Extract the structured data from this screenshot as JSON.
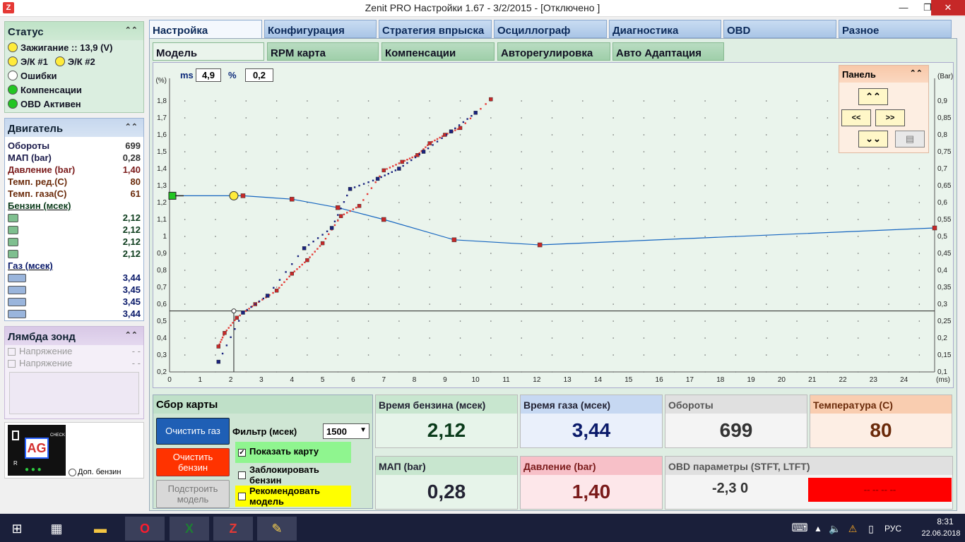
{
  "window": {
    "title": "Zenit PRO Настройки 1.67 - 3/2/2015  - [Отключено ]",
    "app_icon": "Z"
  },
  "status": {
    "title": "Статус",
    "items": [
      {
        "label": "Зажигание :: 13,9 (V)",
        "color": "#ffeb3b"
      },
      {
        "label": "Э/К #1",
        "color": "#ffeb3b"
      },
      {
        "label": "Э/К #2",
        "color": "#ffeb3b"
      },
      {
        "label": "Ошибки",
        "color": "#ffffff"
      },
      {
        "label": "Компенсации",
        "color": "#22c522"
      },
      {
        "label": "OBD Активен",
        "color": "#22c522"
      }
    ]
  },
  "engine": {
    "title": "Двигатель",
    "rows": [
      {
        "label": "Обороты",
        "value": "699"
      },
      {
        "label": "МАП (bar)",
        "value": "0,28"
      },
      {
        "label": "Давление (bar)",
        "value": "1,40"
      },
      {
        "label": "Темп. ред.(C)",
        "value": "80"
      },
      {
        "label": "Темп. газа(C)",
        "value": "61"
      }
    ],
    "petrol_title": "Бензин (мсек)",
    "petrol": [
      "2,12",
      "2,12",
      "2,12",
      "2,12"
    ],
    "gas_title": "Газ (мсек)",
    "gas": [
      "3,44",
      "3,45",
      "3,45",
      "3,44"
    ]
  },
  "lambda": {
    "title": "Лямбда зонд",
    "rows": [
      {
        "label": "Напряжение",
        "value": "- -"
      },
      {
        "label": "Напряжение",
        "value": "- -"
      }
    ]
  },
  "logo": {
    "text": "AG",
    "check": "CHECK",
    "r": "R",
    "extra": "Доп. бензин"
  },
  "tabs": [
    "Настройка",
    "Конфигурация",
    "Стратегия впрыска",
    "Осциллограф",
    "Диагностика",
    "OBD",
    "Разное"
  ],
  "subtabs": [
    "Модель",
    "RPM карта",
    "Компенсации",
    "Авторегулировка",
    "Авто Адаптация"
  ],
  "chart_header": {
    "ms_label": "ms",
    "ms_value": "4,9",
    "pct_label": "%",
    "pct_value": "0,2"
  },
  "chart_data": {
    "type": "scatter",
    "xlabel": "(ms)",
    "ylabel": "(%)",
    "y2label": "(Bar)",
    "xlim": [
      0,
      25
    ],
    "ylim": [
      0.2,
      1.85
    ],
    "y2lim": [
      0.1,
      0.925
    ],
    "x_ticks": [
      0,
      1,
      2,
      3,
      4,
      5,
      6,
      7,
      8,
      9,
      10,
      11,
      12,
      13,
      14,
      15,
      16,
      17,
      18,
      19,
      20,
      21,
      22,
      23,
      24
    ],
    "y_ticks": [
      "0,2",
      "0,3",
      "0,4",
      "0,5",
      "0,6",
      "0,7",
      "0,8",
      "0,9",
      "1",
      "1,1",
      "1,2",
      "1,3",
      "1,4",
      "1,5",
      "1,6",
      "1,7",
      "1,8"
    ],
    "y2_ticks": [
      "0,1",
      "0,15",
      "0,2",
      "0,25",
      "0,3",
      "0,35",
      "0,4",
      "0,45",
      "0,5",
      "0,55",
      "0,6",
      "0,65",
      "0,7",
      "0,75",
      "0,8",
      "0,85",
      "0,9"
    ],
    "grid": "dotted",
    "series": [
      {
        "points": [
          [
            0,
            1.24
          ],
          [
            2.1,
            1.24
          ],
          [
            2.4,
            1.24
          ],
          [
            4,
            1.22
          ],
          [
            5.5,
            1.17
          ],
          [
            7,
            1.1
          ],
          [
            9.3,
            0.98
          ],
          [
            12.1,
            0.95
          ],
          [
            25,
            1.05
          ]
        ]
      },
      {
        "points": [
          [
            1.6,
            0.35
          ],
          [
            1.8,
            0.43
          ],
          [
            2.2,
            0.52
          ],
          [
            2.8,
            0.6
          ],
          [
            3.5,
            0.68
          ],
          [
            4,
            0.78
          ],
          [
            4.5,
            0.86
          ],
          [
            5,
            0.96
          ],
          [
            5.6,
            1.12
          ],
          [
            6.2,
            1.18
          ],
          [
            7,
            1.39
          ],
          [
            7.6,
            1.44
          ],
          [
            8.1,
            1.48
          ],
          [
            8.5,
            1.55
          ],
          [
            9,
            1.6
          ],
          [
            9.5,
            1.64
          ],
          [
            10.5,
            1.81
          ]
        ]
      },
      {
        "points": [
          [
            1.6,
            0.26
          ],
          [
            2.4,
            0.55
          ],
          [
            3.2,
            0.65
          ],
          [
            4.4,
            0.93
          ],
          [
            5.3,
            1.05
          ],
          [
            5.9,
            1.28
          ],
          [
            6.8,
            1.34
          ],
          [
            7.5,
            1.4
          ],
          [
            8.3,
            1.5
          ],
          [
            9.2,
            1.62
          ],
          [
            10,
            1.73
          ]
        ]
      }
    ],
    "markers": [
      {
        "x": 0,
        "y": 1.24
      },
      {
        "x": 2.1,
        "y": 1.24
      },
      {
        "x": 2.1,
        "y": 0.56
      }
    ],
    "crosshair": {
      "x": 2.1,
      "y": 0.56
    }
  },
  "side_panel": {
    "title": "Панель"
  },
  "collect": {
    "title": "Сбор карты",
    "clear_gas": "Очистить газ",
    "filter_label": "Фильтр (мсек)",
    "filter_value": "1500",
    "clear_petrol": "Очистить бензин",
    "build_model": "Подстроить модель",
    "show_map": "Показать карту",
    "lock_petrol": "Заблокировать бензин",
    "recommend": "Рекомендовать модель"
  },
  "metrics": {
    "petrol_time": {
      "label": "Время бензина (мсек)",
      "value": "2,12"
    },
    "gas_time": {
      "label": "Время газа (мсек)",
      "value": "3,44"
    },
    "rpm": {
      "label": "Обороты",
      "value": "699"
    },
    "temp": {
      "label": "Температура (С)",
      "value": "80"
    },
    "map": {
      "label": "МАП (bar)",
      "value": "0,28"
    },
    "pressure": {
      "label": "Давление (bar)",
      "value": "1,40"
    },
    "obd": {
      "label": "OBD параметры (STFT, LTFT)",
      "value": "-2,3  0",
      "red": "-- --    -- --"
    }
  },
  "taskbar": {
    "lang": "РУС",
    "time": "8:31",
    "date": "22.06.2018"
  }
}
